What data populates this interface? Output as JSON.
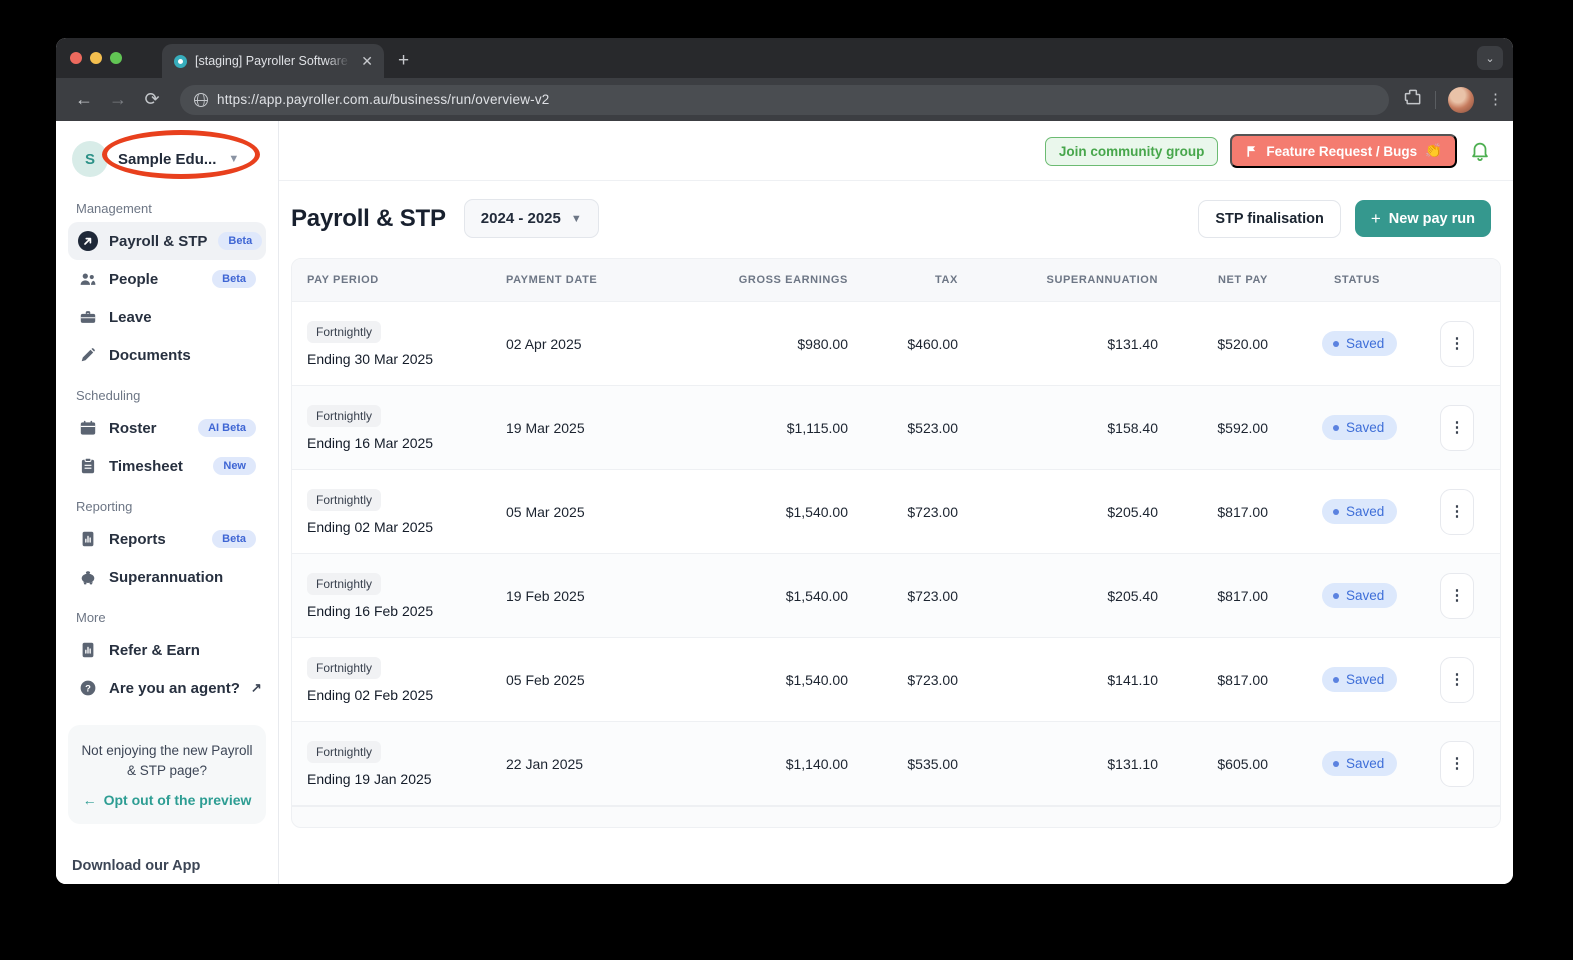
{
  "browser": {
    "tab_title": "[staging] Payroller Software W",
    "url": "https://app.payroller.com.au/business/run/overview-v2"
  },
  "sidebar": {
    "business": {
      "initial": "S",
      "name": "Sample Edu...",
      "accent_color": "#2c9187"
    },
    "annotation_color": "#e8401d",
    "sections": [
      {
        "label": "Management",
        "items": [
          {
            "label": "Payroll & STP",
            "icon": "payroll",
            "badge": "Beta",
            "active": true
          },
          {
            "label": "People",
            "icon": "people",
            "badge": "Beta"
          },
          {
            "label": "Leave",
            "icon": "briefcase"
          },
          {
            "label": "Documents",
            "icon": "pen"
          }
        ]
      },
      {
        "label": "Scheduling",
        "items": [
          {
            "label": "Roster",
            "icon": "calendar",
            "badge": "AI Beta"
          },
          {
            "label": "Timesheet",
            "icon": "clipboard",
            "badge": "New"
          }
        ]
      },
      {
        "label": "Reporting",
        "items": [
          {
            "label": "Reports",
            "icon": "chart-doc",
            "badge": "Beta"
          },
          {
            "label": "Superannuation",
            "icon": "piggy-bank"
          }
        ]
      },
      {
        "label": "More",
        "items": [
          {
            "label": "Refer & Earn",
            "icon": "chart-doc"
          },
          {
            "label": "Are you an agent?",
            "icon": "question-circle",
            "external": true
          }
        ]
      }
    ],
    "promo": {
      "text": "Not enjoying the new Payroll & STP page?",
      "link_label": "Opt out of the preview",
      "link_arrow": "←",
      "link_color": "#2d9d93"
    },
    "download_label": "Download our App"
  },
  "topbar": {
    "community_button": "Join community group",
    "community_color": "#47a64b",
    "feature_button": "Feature Request / Bugs",
    "feature_emoji": "👏",
    "feature_color": "#f47c70",
    "bell_color": "#4caf50"
  },
  "header": {
    "title": "Payroll & STP",
    "year_selector": "2024 - 2025",
    "stp_button": "STP finalisation",
    "new_pay_run_button": "New pay run",
    "new_pay_run_color": "#35988e"
  },
  "table": {
    "columns": [
      "Pay period",
      "Payment date",
      "Gross earnings",
      "Tax",
      "Superannuation",
      "Net pay",
      "Status"
    ],
    "rows": [
      {
        "frequency": "Fortnightly",
        "ending": "Ending 30 Mar 2025",
        "payment_date": "02 Apr 2025",
        "gross": "$980.00",
        "tax": "$460.00",
        "superannuation": "$131.40",
        "net": "$520.00",
        "status": "Saved"
      },
      {
        "frequency": "Fortnightly",
        "ending": "Ending 16 Mar 2025",
        "payment_date": "19 Mar 2025",
        "gross": "$1,115.00",
        "tax": "$523.00",
        "superannuation": "$158.40",
        "net": "$592.00",
        "status": "Saved"
      },
      {
        "frequency": "Fortnightly",
        "ending": "Ending 02 Mar 2025",
        "payment_date": "05 Mar 2025",
        "gross": "$1,540.00",
        "tax": "$723.00",
        "superannuation": "$205.40",
        "net": "$817.00",
        "status": "Saved"
      },
      {
        "frequency": "Fortnightly",
        "ending": "Ending 16 Feb 2025",
        "payment_date": "19 Feb 2025",
        "gross": "$1,540.00",
        "tax": "$723.00",
        "superannuation": "$205.40",
        "net": "$817.00",
        "status": "Saved"
      },
      {
        "frequency": "Fortnightly",
        "ending": "Ending 02 Feb 2025",
        "payment_date": "05 Feb 2025",
        "gross": "$1,540.00",
        "tax": "$723.00",
        "superannuation": "$141.10",
        "net": "$817.00",
        "status": "Saved"
      },
      {
        "frequency": "Fortnightly",
        "ending": "Ending 19 Jan 2025",
        "payment_date": "22 Jan 2025",
        "gross": "$1,140.00",
        "tax": "$535.00",
        "superannuation": "$131.10",
        "net": "$605.00",
        "status": "Saved"
      }
    ],
    "status_color": "#3e6ed8"
  }
}
